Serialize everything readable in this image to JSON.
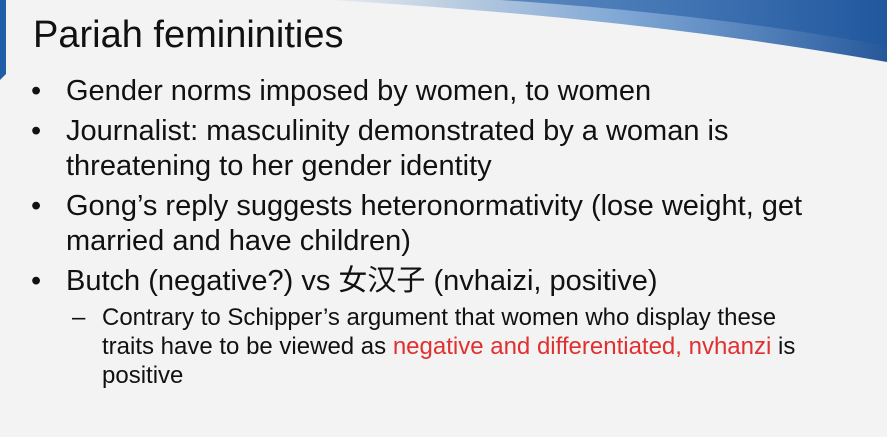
{
  "slide": {
    "title": "Pariah femininities",
    "bullet_marker": "•",
    "sub_marker": "–",
    "bullets": [
      {
        "text": "Gender norms imposed by women, to women"
      },
      {
        "text": "Journalist: masculinity demonstrated by a woman is threatening to her gender identity"
      },
      {
        "text": "Gong’s reply suggests heteronormativity (lose weight, get married and have children)"
      },
      {
        "text": "Butch (negative?) vs 女汉子 (nvhaizi, positive)",
        "sub": {
          "before": "Contrary to Schipper’s argument that women who display these traits have to be viewed as ",
          "highlight": "negative and differentiated, nvhanzi",
          "after": " is positive"
        }
      }
    ],
    "colors": {
      "background": "#f3f3f3",
      "accent_blue": "#1f5fa8",
      "highlight_red": "#e03030",
      "text": "#111111"
    }
  }
}
